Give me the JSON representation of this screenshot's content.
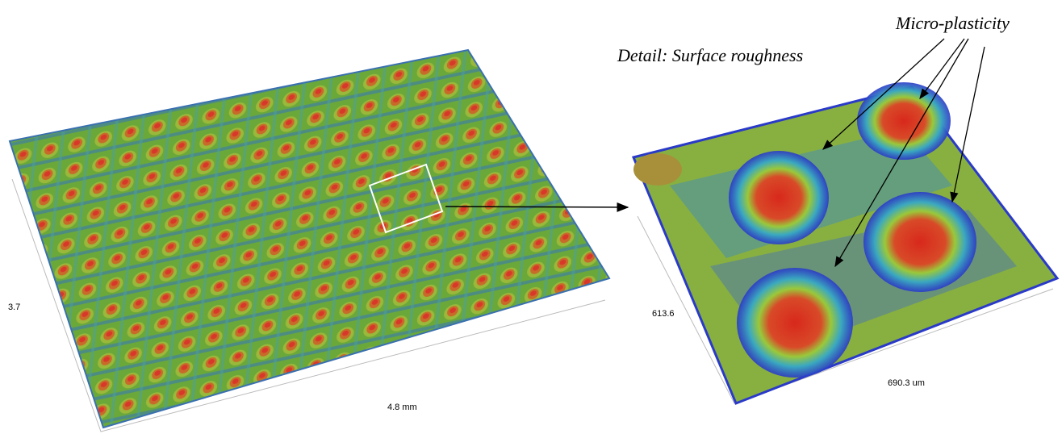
{
  "left_panel": {
    "depth_label": "3.7",
    "width_label": "4.8 mm"
  },
  "right_panel": {
    "title": "Detail: Surface roughness",
    "depth_label": "613.6",
    "width_label": "690.3 um"
  },
  "annotation": "Micro-plasticity"
}
